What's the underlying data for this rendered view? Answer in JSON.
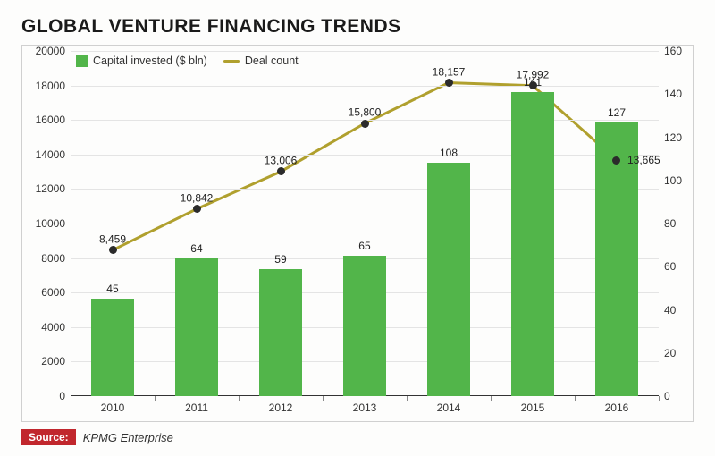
{
  "title": "GLOBAL VENTURE FINANCING TRENDS",
  "title_fontsize": 21,
  "legend": {
    "series1": {
      "label": "Capital invested ($ bln)",
      "color": "#52b54a"
    },
    "series2": {
      "label": "Deal count",
      "color": "#b0a02e"
    }
  },
  "chart": {
    "type": "bar+line",
    "background_color": "#fdfdfc",
    "grid_color": "#e4e4e4",
    "axis_color": "#333333",
    "categories": [
      "2010",
      "2011",
      "2012",
      "2013",
      "2014",
      "2015",
      "2016"
    ],
    "bars": {
      "values": [
        45,
        64,
        59,
        65,
        108,
        141,
        127
      ],
      "value_labels": [
        "45",
        "64",
        "59",
        "65",
        "108",
        "141",
        "127"
      ],
      "color": "#52b54a",
      "width_fraction": 0.52
    },
    "line": {
      "values": [
        8459,
        10842,
        13006,
        15800,
        18157,
        17992,
        13665
      ],
      "value_labels": [
        "8,459",
        "10,842",
        "13,006",
        "15,800",
        "18,157",
        "17,992",
        "13,665"
      ],
      "point_label_offsets": [
        "above",
        "above",
        "above",
        "above",
        "above",
        "above",
        "right"
      ],
      "color": "#b0a02e",
      "line_width": 3,
      "marker_fill": "#2b2b2b",
      "marker_radius": 4.5
    },
    "y_left": {
      "min": 0,
      "max": 20000,
      "step": 2000,
      "fontsize": 12
    },
    "y_right": {
      "min": 0,
      "max": 160,
      "step": 20,
      "fontsize": 12
    },
    "x_fontsize": 12
  },
  "source": {
    "badge_label": "Source:",
    "badge_bg": "#c1272d",
    "text": "KPMG Enterprise"
  }
}
